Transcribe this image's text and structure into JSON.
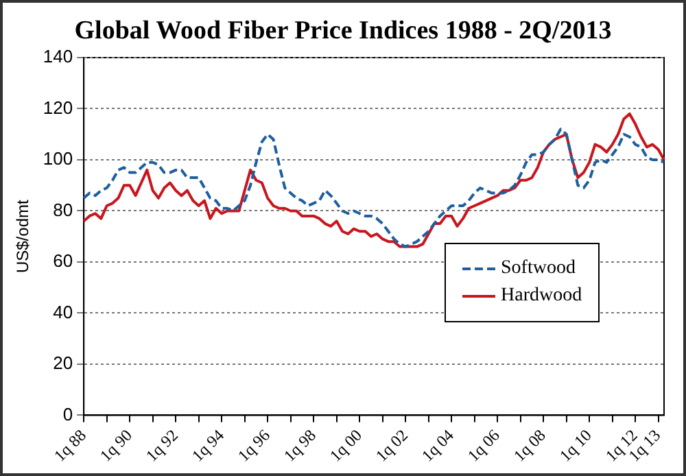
{
  "chart_data": {
    "type": "line",
    "title": "Global Wood Fiber Price Indices 1988 - 2Q/2013",
    "ylabel": "US$/odmt",
    "categories": [
      "1q 88",
      null,
      null,
      null,
      null,
      null,
      null,
      null,
      "1q 90",
      null,
      null,
      null,
      null,
      null,
      null,
      null,
      "1q 92",
      null,
      null,
      null,
      null,
      null,
      null,
      null,
      "1q 94",
      null,
      null,
      null,
      null,
      null,
      null,
      null,
      "1q 96",
      null,
      null,
      null,
      null,
      null,
      null,
      null,
      "1q 98",
      null,
      null,
      null,
      null,
      null,
      null,
      null,
      "1q 00",
      null,
      null,
      null,
      null,
      null,
      null,
      null,
      "1q 02",
      null,
      null,
      null,
      null,
      null,
      null,
      null,
      "1q 04",
      null,
      null,
      null,
      null,
      null,
      null,
      null,
      "1q 06",
      null,
      null,
      null,
      null,
      null,
      null,
      null,
      "1q 08",
      null,
      null,
      null,
      null,
      null,
      null,
      null,
      "1q 10",
      null,
      null,
      null,
      null,
      null,
      null,
      null,
      "1q 12",
      null,
      null,
      null,
      "1q 13",
      null
    ],
    "series": [
      {
        "name": "Softwood",
        "color": "#1f5f9e",
        "line_style": "dashed",
        "values": [
          85,
          87,
          86,
          88,
          89,
          92,
          96,
          97,
          95,
          95,
          97,
          99,
          99,
          98,
          95,
          95,
          96,
          96,
          93,
          93,
          93,
          89,
          85,
          84,
          81,
          81,
          80,
          82,
          84,
          90,
          99,
          107,
          110,
          108,
          98,
          89,
          87,
          85,
          84,
          82,
          83,
          84,
          88,
          86,
          83,
          80,
          79,
          80,
          79,
          78,
          78,
          77,
          75,
          72,
          69,
          67,
          66,
          67,
          68,
          70,
          72,
          75,
          78,
          80,
          82,
          82,
          82,
          84,
          87,
          89,
          88,
          87,
          87,
          87,
          88,
          90,
          94,
          99,
          102,
          102,
          103,
          106,
          108,
          112,
          110,
          100,
          90,
          89,
          92,
          99,
          100,
          99,
          102,
          105,
          110,
          109,
          106,
          105,
          101,
          100,
          100,
          99
        ]
      },
      {
        "name": "Hardwood",
        "color": "#c8161d",
        "line_style": "solid",
        "values": [
          76,
          78,
          79,
          77,
          82,
          83,
          85,
          90,
          90,
          86,
          91,
          96,
          88,
          85,
          89,
          91,
          88,
          86,
          88,
          84,
          82,
          84,
          77,
          81,
          79,
          80,
          80,
          80,
          88,
          96,
          92,
          91,
          85,
          82,
          81,
          81,
          80,
          80,
          78,
          78,
          78,
          77,
          75,
          74,
          76,
          72,
          71,
          73,
          72,
          72,
          70,
          71,
          69,
          68,
          68,
          66,
          66,
          66,
          66,
          67,
          71,
          75,
          75,
          78,
          78,
          74,
          77,
          81,
          82,
          83,
          84,
          85,
          86,
          88,
          88,
          89,
          92,
          92,
          93,
          97,
          103,
          106,
          108,
          109,
          110,
          100,
          93,
          95,
          99,
          106,
          105,
          103,
          106,
          110,
          116,
          118,
          114,
          109,
          105,
          106,
          104,
          100
        ]
      }
    ],
    "ylim": [
      0,
      140
    ],
    "yticks": [
      0,
      20,
      40,
      60,
      80,
      100,
      120,
      140
    ],
    "grid": "y",
    "legend": "right",
    "marker": "none"
  }
}
